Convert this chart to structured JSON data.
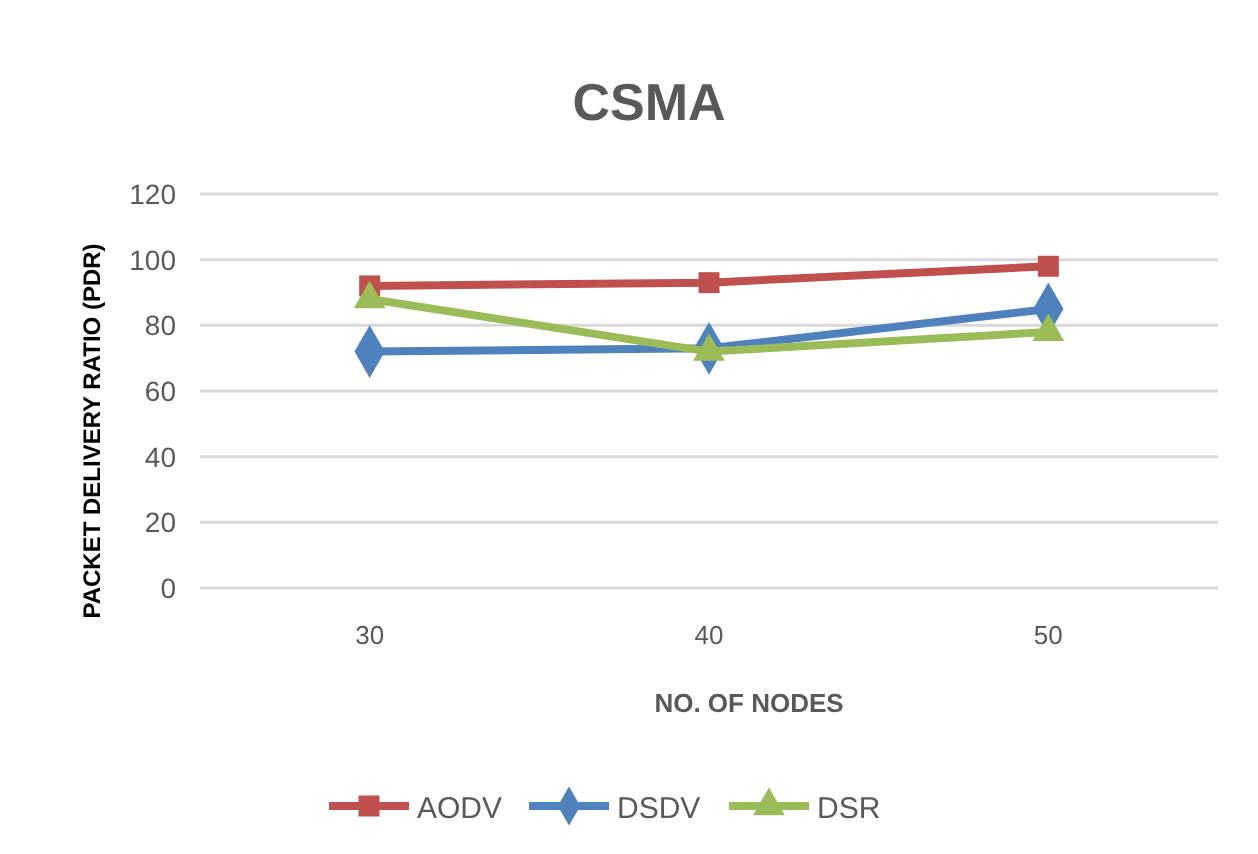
{
  "chart_data": {
    "type": "line",
    "title": "CSMA",
    "xlabel": "NO. OF NODES",
    "ylabel": "PACKET DELIVERY RATIO (PDR)",
    "categories": [
      "30",
      "40",
      "50"
    ],
    "series": [
      {
        "name": "AODV",
        "color": "#c0504d",
        "values": [
          92,
          93,
          98
        ],
        "marker": "square"
      },
      {
        "name": "DSDV",
        "color": "#4f81bd",
        "values": [
          72,
          73,
          85
        ],
        "marker": "diamond"
      },
      {
        "name": "DSR",
        "color": "#9bbb59",
        "values": [
          88,
          72,
          78
        ],
        "marker": "triangle"
      }
    ],
    "ylim": [
      0,
      120
    ],
    "yticks": [
      0,
      20,
      40,
      60,
      80,
      100,
      120
    ],
    "grid": "y",
    "legend": "bottom"
  }
}
